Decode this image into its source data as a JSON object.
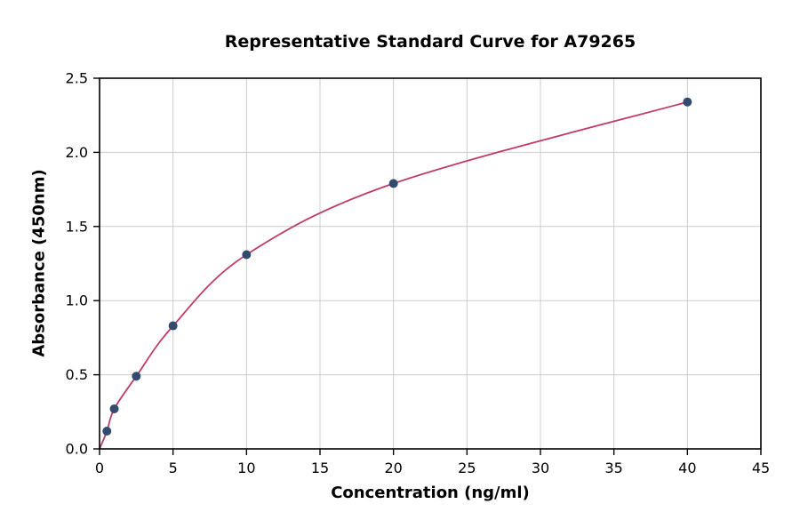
{
  "chart_data": {
    "type": "scatter",
    "title": "Representative Standard Curve for A79265",
    "xlabel": "Concentration (ng/ml)",
    "ylabel": "Absorbance (450nm)",
    "xlim": [
      0,
      45
    ],
    "ylim": [
      0,
      2.5
    ],
    "xticks": [
      0,
      5,
      10,
      15,
      20,
      25,
      30,
      35,
      40,
      45
    ],
    "xtick_labels": [
      "0",
      "5",
      "10",
      "15",
      "20",
      "25",
      "30",
      "35",
      "40",
      "45"
    ],
    "yticks": [
      0,
      0.5,
      1.0,
      1.5,
      2.0,
      2.5
    ],
    "ytick_labels": [
      "0.0",
      "0.5",
      "1.0",
      "1.5",
      "2.0",
      "2.5"
    ],
    "grid": true,
    "grid_color": "#cccccc",
    "curve_color": "#c13b66",
    "point_color": "#324b6e",
    "axis_color": "#000000",
    "background_color": "#ffffff",
    "legend": "none",
    "curve_start": {
      "x": 0,
      "y": 0.0
    },
    "points": [
      {
        "x": 0.5,
        "y": 0.12
      },
      {
        "x": 1,
        "y": 0.27
      },
      {
        "x": 2.5,
        "y": 0.49
      },
      {
        "x": 5,
        "y": 0.83
      },
      {
        "x": 10,
        "y": 1.31
      },
      {
        "x": 20,
        "y": 1.79
      },
      {
        "x": 40,
        "y": 2.34
      }
    ]
  }
}
